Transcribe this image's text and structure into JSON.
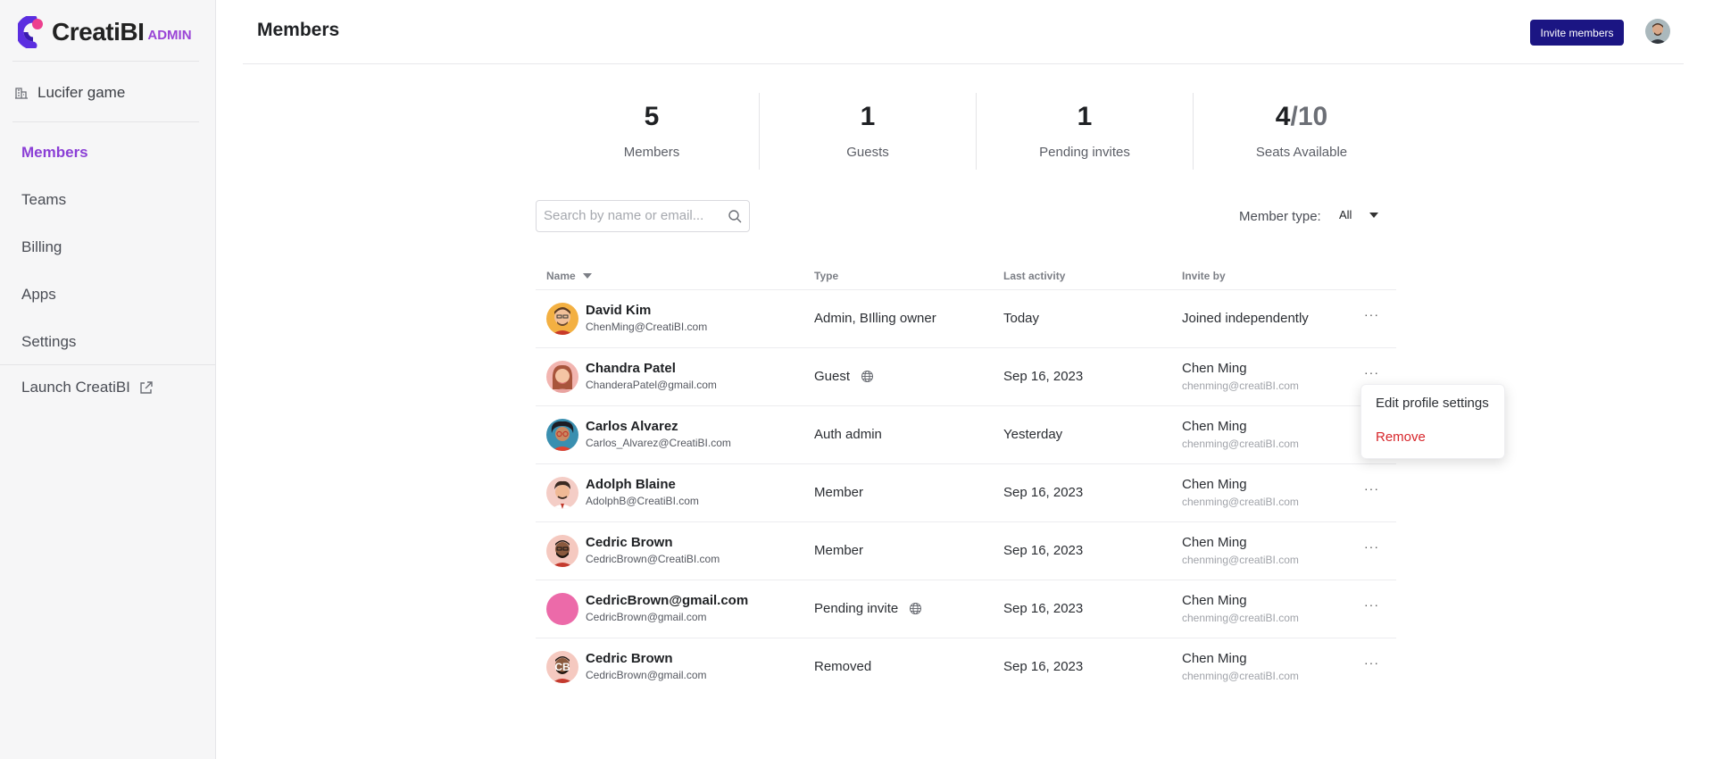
{
  "brand": {
    "name": "CreatiBI",
    "tag": "ADMIN",
    "accent": "#8b3fd6"
  },
  "sidebar": {
    "workspace": "Lucifer game",
    "items": [
      {
        "label": "Members"
      },
      {
        "label": "Teams"
      },
      {
        "label": "Billing"
      },
      {
        "label": "Apps"
      },
      {
        "label": "Settings"
      }
    ],
    "launch": "Launch CreatiBI"
  },
  "header": {
    "title": "Members",
    "invite_label": "Invite members",
    "invite_color": "#1b1583"
  },
  "stats": [
    {
      "value": "5",
      "label": "Members"
    },
    {
      "value": "1",
      "label": "Guests"
    },
    {
      "value": "1",
      "label": "Pending invites"
    },
    {
      "value": "4",
      "total": "/10",
      "label": "Seats Available"
    }
  ],
  "search": {
    "placeholder": "Search by name or email..."
  },
  "filter": {
    "label": "Member type:",
    "value": "All"
  },
  "table": {
    "columns": [
      "Name",
      "Type",
      "Last activity",
      "Invite by"
    ],
    "rows": [
      {
        "name": "David Kim",
        "email": "ChenMing@CreatiBI.com",
        "type": "Admin, BIlling owner",
        "activity": "Today",
        "inviter": "Joined independently",
        "inviter_email": ""
      },
      {
        "name": "Chandra Patel",
        "email": "ChanderaPatel@gmail.com",
        "type": "Guest",
        "activity": "Sep 16, 2023",
        "inviter": "Chen Ming",
        "inviter_email": "chenming@creatiBI.com"
      },
      {
        "name": "Carlos Alvarez",
        "email": "Carlos_Alvarez@CreatiBI.com",
        "type": "Auth admin",
        "activity": "Yesterday",
        "inviter": "Chen Ming",
        "inviter_email": "chenming@creatiBI.com"
      },
      {
        "name": "Adolph Blaine",
        "email": "AdolphB@CreatiBI.com",
        "type": "Member",
        "activity": "Sep 16, 2023",
        "inviter": "Chen Ming",
        "inviter_email": "chenming@creatiBI.com"
      },
      {
        "name": "Cedric Brown",
        "email": "CedricBrown@CreatiBI.com",
        "type": "Member",
        "activity": "Sep 16, 2023",
        "inviter": "Chen Ming",
        "inviter_email": "chenming@creatiBI.com"
      },
      {
        "name": "CedricBrown@gmail.com",
        "email": "CedricBrown@gmail.com",
        "type": "Pending invite",
        "activity": "Sep 16, 2023",
        "inviter": "Chen Ming",
        "inviter_email": "chenming@creatiBI.com"
      },
      {
        "name": "Cedric Brown",
        "email": "CedricBrown@gmail.com",
        "type": "Removed",
        "activity": "Sep 16, 2023",
        "inviter": "Chen Ming",
        "inviter_email": "chenming@creatiBI.com"
      }
    ]
  },
  "context_menu": {
    "edit": "Edit profile settings",
    "remove": "Remove",
    "danger_color": "#d7262b"
  }
}
